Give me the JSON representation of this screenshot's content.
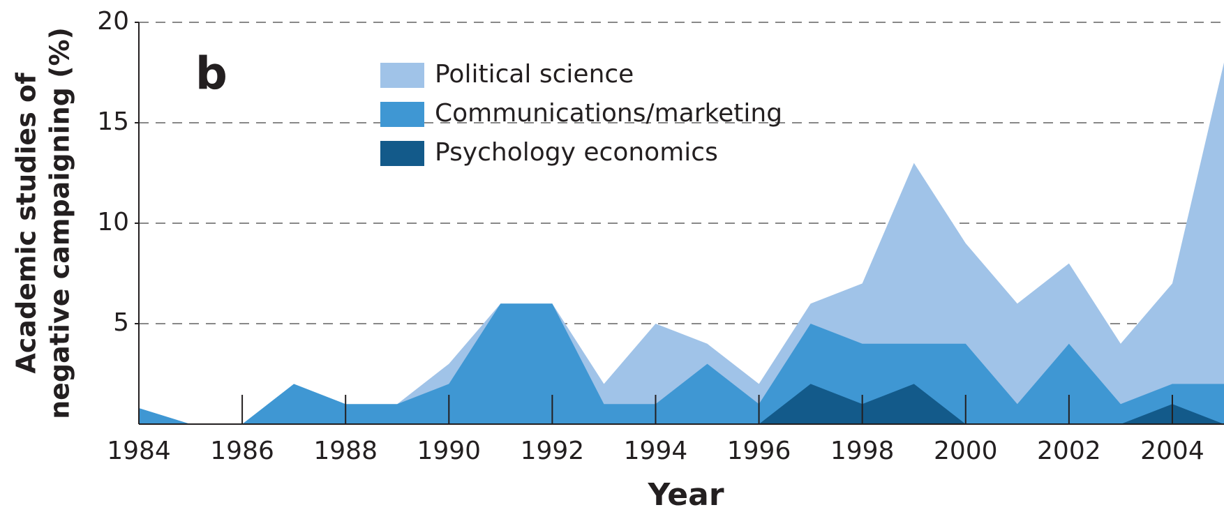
{
  "chart_data": {
    "type": "area",
    "panel_label": "b",
    "xlabel": "Year",
    "ylabel": [
      "Academic studies of",
      "negative campaigning (%)"
    ],
    "x": [
      1984,
      1985,
      1986,
      1987,
      1988,
      1989,
      1990,
      1991,
      1992,
      1993,
      1994,
      1995,
      1996,
      1997,
      1998,
      1999,
      2000,
      2001,
      2002,
      2003,
      2004,
      2005
    ],
    "series": [
      {
        "name": "Political science",
        "color": "#a0c3e8",
        "values": [
          0,
          0,
          0,
          0,
          0,
          1,
          3,
          6,
          6,
          2,
          5,
          4,
          2,
          6,
          7,
          13,
          9,
          6,
          8,
          4,
          7,
          18
        ]
      },
      {
        "name": "Communications/marketing",
        "color": "#3f97d3",
        "values": [
          0.8,
          0,
          0,
          2,
          1,
          1,
          2,
          6,
          6,
          1,
          1,
          3,
          1,
          5,
          4,
          4,
          4,
          1,
          4,
          1,
          2,
          2
        ]
      },
      {
        "name": "Psychology economics",
        "color": "#135a8a",
        "values": [
          0,
          0,
          0,
          0,
          0,
          0,
          0,
          0,
          0,
          0,
          0,
          0,
          0,
          2,
          1,
          2,
          0,
          0,
          0,
          0,
          1,
          0
        ]
      }
    ],
    "xlim": [
      1984,
      2005
    ],
    "xticks": [
      1984,
      1986,
      1988,
      1990,
      1992,
      1994,
      1996,
      1998,
      2000,
      2002,
      2004
    ],
    "ylim": [
      0,
      20
    ],
    "yticks": [
      5,
      10,
      15,
      20
    ],
    "grid": true,
    "legend": "upper left"
  }
}
